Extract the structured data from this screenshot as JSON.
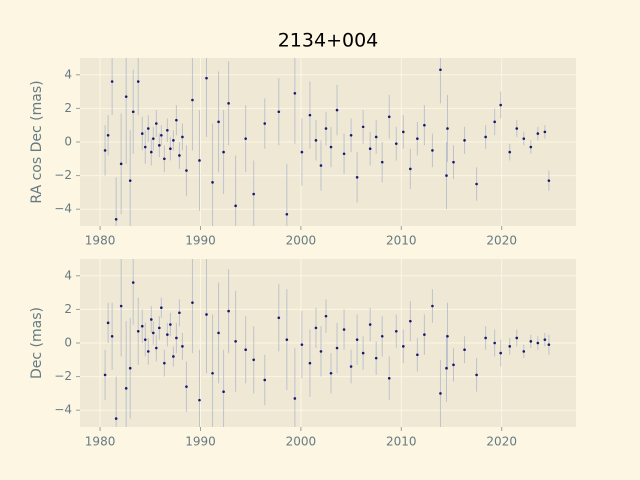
{
  "chart_data": [
    {
      "type": "scatter",
      "title": "2134+004",
      "ylabel": "RA cos Dec (mas)",
      "x": [
        1980.5,
        1980.8,
        1981.2,
        1981.6,
        1982.1,
        1982.6,
        1983.0,
        1983.3,
        1983.8,
        1984.2,
        1984.5,
        1984.8,
        1985.1,
        1985.3,
        1985.6,
        1985.9,
        1986.1,
        1986.4,
        1986.7,
        1987.0,
        1987.3,
        1987.6,
        1987.9,
        1988.2,
        1988.6,
        1989.2,
        1989.9,
        1990.6,
        1991.2,
        1991.8,
        1992.3,
        1992.8,
        1993.5,
        1994.5,
        1995.3,
        1996.4,
        1997.8,
        1998.6,
        1999.4,
        2000.1,
        2000.9,
        2001.5,
        2002.0,
        2002.5,
        2003.0,
        2003.6,
        2004.3,
        2005.0,
        2005.6,
        2006.2,
        2006.9,
        2007.5,
        2008.1,
        2008.8,
        2009.5,
        2010.2,
        2010.9,
        2011.6,
        2012.3,
        2013.1,
        2013.9,
        2014.5,
        2014.6,
        2015.2,
        2016.3,
        2017.5,
        2018.4,
        2019.3,
        2019.9,
        2020.8,
        2021.5,
        2022.2,
        2022.9,
        2023.6,
        2024.3,
        2024.7
      ],
      "values": [
        -0.5,
        0.4,
        3.6,
        -4.6,
        -1.3,
        2.7,
        -2.3,
        1.8,
        3.6,
        0.5,
        -0.3,
        0.8,
        -0.6,
        0.2,
        1.1,
        -0.2,
        0.4,
        -1.0,
        0.7,
        -0.4,
        0.1,
        1.3,
        -0.8,
        0.3,
        -1.7,
        2.5,
        -1.1,
        3.8,
        -2.4,
        1.2,
        -0.6,
        2.3,
        -3.8,
        0.2,
        -3.1,
        1.1,
        1.8,
        -4.3,
        2.9,
        -0.6,
        1.6,
        0.1,
        -1.4,
        0.8,
        -0.3,
        1.9,
        -0.7,
        0.4,
        -2.1,
        0.9,
        -0.4,
        0.3,
        -1.2,
        1.5,
        -0.1,
        0.6,
        -1.6,
        0.2,
        1.0,
        -0.5,
        4.3,
        -2.0,
        0.8,
        -1.2,
        0.1,
        -2.5,
        0.3,
        1.2,
        2.2,
        -0.6,
        0.8,
        0.2,
        -0.3,
        0.5,
        0.6,
        -2.3
      ],
      "errors": [
        1.5,
        1.2,
        2.0,
        2.5,
        3.0,
        4.0,
        3.0,
        2.5,
        2.0,
        1.0,
        1.0,
        0.8,
        0.8,
        0.7,
        0.8,
        0.7,
        0.6,
        0.8,
        0.7,
        0.7,
        0.6,
        0.9,
        0.8,
        0.8,
        1.5,
        3.0,
        3.0,
        3.5,
        3.5,
        3.0,
        2.5,
        2.5,
        3.0,
        2.0,
        2.0,
        1.5,
        2.0,
        3.0,
        3.0,
        2.0,
        2.0,
        1.2,
        1.5,
        1.0,
        1.2,
        1.5,
        1.2,
        1.0,
        1.5,
        1.0,
        1.0,
        1.0,
        1.2,
        1.3,
        1.0,
        1.0,
        1.2,
        1.0,
        1.2,
        1.0,
        2.0,
        2.0,
        2.0,
        1.0,
        0.8,
        1.0,
        0.7,
        0.8,
        0.8,
        0.5,
        0.5,
        0.4,
        0.4,
        0.4,
        0.4,
        0.6
      ],
      "color": "#191970",
      "error_color": "#aab3c8",
      "xlim": [
        1978.0,
        2027.4
      ],
      "ylim": [
        -5,
        5
      ],
      "xticks": [
        1980,
        1990,
        2000,
        2010,
        2020
      ],
      "yticks": [
        {
          "value": -4,
          "label": "−4"
        },
        {
          "value": -2,
          "label": "−2"
        },
        0,
        2,
        4
      ],
      "grid": true
    },
    {
      "type": "scatter",
      "ylabel": "Dec (mas)",
      "x": [
        1980.5,
        1980.8,
        1981.2,
        1981.6,
        1982.1,
        1982.6,
        1983.0,
        1983.3,
        1983.8,
        1984.2,
        1984.5,
        1984.8,
        1985.1,
        1985.3,
        1985.6,
        1985.9,
        1986.1,
        1986.4,
        1986.7,
        1987.0,
        1987.3,
        1987.6,
        1987.9,
        1988.2,
        1988.6,
        1989.2,
        1989.9,
        1990.6,
        1991.2,
        1991.8,
        1992.3,
        1992.8,
        1993.5,
        1994.5,
        1995.3,
        1996.4,
        1997.8,
        1998.6,
        1999.4,
        2000.1,
        2000.9,
        2001.5,
        2002.0,
        2002.5,
        2003.0,
        2003.6,
        2004.3,
        2005.0,
        2005.6,
        2006.2,
        2006.9,
        2007.5,
        2008.1,
        2008.8,
        2009.5,
        2010.2,
        2010.9,
        2011.6,
        2012.3,
        2013.1,
        2013.9,
        2014.5,
        2014.6,
        2015.2,
        2016.3,
        2017.5,
        2018.4,
        2019.3,
        2019.9,
        2020.8,
        2021.5,
        2022.2,
        2022.9,
        2023.6,
        2024.3,
        2024.7
      ],
      "values": [
        -1.9,
        1.2,
        0.4,
        -4.5,
        2.2,
        -2.7,
        -1.5,
        3.6,
        0.7,
        1.0,
        0.2,
        -0.5,
        1.4,
        0.6,
        -0.3,
        0.9,
        2.1,
        -1.2,
        0.5,
        1.1,
        -0.8,
        0.3,
        1.8,
        -0.2,
        -2.6,
        2.4,
        -3.4,
        1.7,
        -1.8,
        0.6,
        -2.9,
        1.9,
        0.1,
        -0.4,
        -1.0,
        -2.2,
        1.5,
        0.2,
        -3.3,
        -0.1,
        -1.2,
        0.9,
        -0.5,
        1.6,
        -1.8,
        -0.3,
        0.8,
        -1.4,
        0.2,
        -0.6,
        1.1,
        -0.9,
        0.4,
        -2.1,
        0.7,
        -0.2,
        1.3,
        -0.7,
        0.5,
        2.2,
        -3.0,
        -1.5,
        0.4,
        -1.3,
        -0.4,
        -1.9,
        0.3,
        0.0,
        -0.6,
        -0.2,
        0.3,
        -0.5,
        0.1,
        0.0,
        0.2,
        -0.1
      ],
      "errors": [
        1.5,
        1.2,
        2.0,
        2.5,
        3.0,
        4.0,
        3.0,
        2.5,
        2.0,
        1.0,
        1.0,
        0.8,
        0.8,
        0.7,
        0.8,
        0.7,
        0.6,
        0.8,
        0.7,
        0.7,
        0.6,
        0.9,
        0.8,
        0.8,
        1.5,
        3.0,
        3.0,
        3.5,
        3.5,
        3.0,
        2.5,
        2.5,
        3.0,
        2.0,
        2.0,
        1.5,
        2.0,
        3.0,
        3.0,
        2.0,
        2.0,
        1.2,
        1.5,
        1.0,
        1.2,
        1.5,
        1.2,
        1.0,
        1.5,
        1.0,
        1.0,
        1.0,
        1.2,
        1.3,
        1.0,
        1.0,
        1.2,
        1.0,
        1.2,
        1.0,
        2.0,
        2.0,
        2.0,
        1.0,
        0.8,
        1.0,
        0.7,
        0.8,
        0.8,
        0.5,
        0.5,
        0.4,
        0.4,
        0.4,
        0.4,
        0.6
      ],
      "color": "#191970",
      "error_color": "#aab3c8",
      "xlim": [
        1978.0,
        2027.4
      ],
      "ylim": [
        -5,
        5
      ],
      "xticks": [
        1980,
        1990,
        2000,
        2010,
        2020
      ],
      "yticks": [
        {
          "value": -4,
          "label": "−4"
        },
        {
          "value": -2,
          "label": "−2"
        },
        0,
        2,
        4
      ],
      "grid": true
    }
  ]
}
